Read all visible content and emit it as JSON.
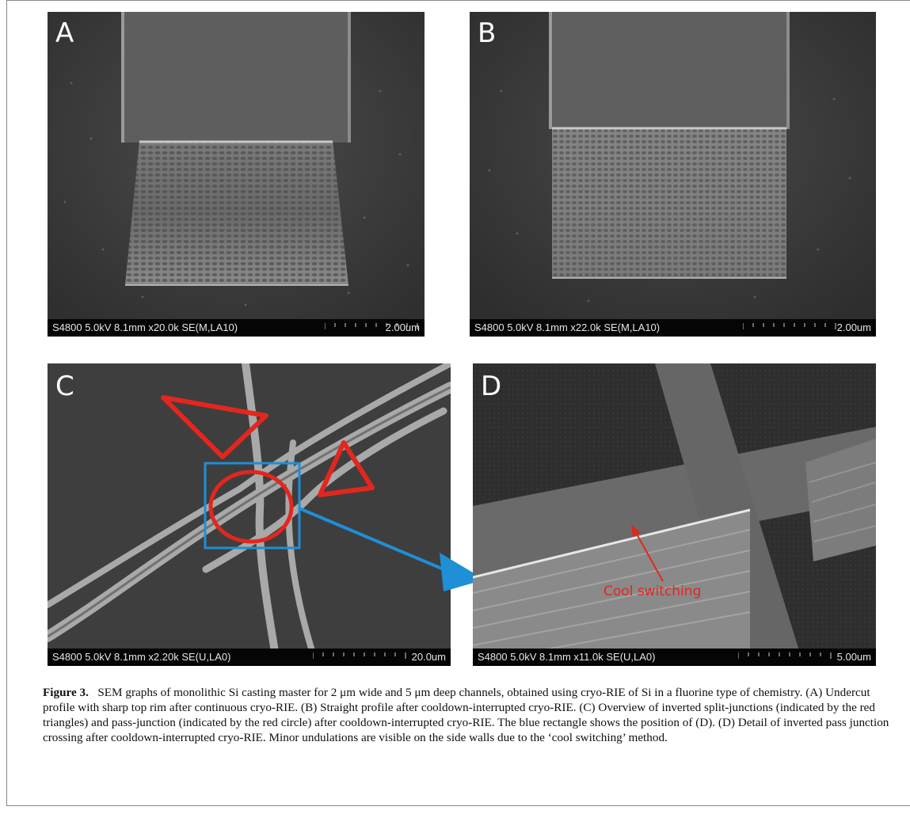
{
  "figure": {
    "panels": [
      {
        "label": "A",
        "info": "S4800 5.0kV 8.1mm x20.0k SE(M,LA10)",
        "scale": "2.00um"
      },
      {
        "label": "B",
        "info": "S4800 5.0kV 8.1mm x22.0k SE(M,LA10)",
        "scale": "2.00um"
      },
      {
        "label": "C",
        "info": "S4800 5.0kV 8.1mm x2.20k SE(U,LA0)",
        "scale": "20.0um"
      },
      {
        "label": "D",
        "info": "S4800 5.0kV 8.1mm x11.0k SE(U,LA0)",
        "scale": "5.00um",
        "annotation": "Cool switching"
      }
    ],
    "colors": {
      "annotation_red": "#e3261e",
      "highlight_blue": "#1f8fd6"
    }
  },
  "caption": {
    "label": "Figure 3.",
    "text": "SEM graphs of monolithic Si casting master for 2 μm wide and 5 μm deep channels, obtained using cryo-RIE of Si in a fluorine type of chemistry. (A) Undercut profile with sharp top rim after continuous cryo-RIE. (B) Straight profile after cooldown-interrupted cryo-RIE. (C) Overview of inverted split-junctions (indicated by the red triangles) and pass-junction (indicated by the red circle) after cooldown-interrupted cryo-RIE. The blue rectangle shows the position of (D). (D) Detail of inverted pass junction crossing after cooldown-interrupted cryo-RIE. Minor undulations are visible on the side walls due to the ‘cool switching’ method."
  }
}
